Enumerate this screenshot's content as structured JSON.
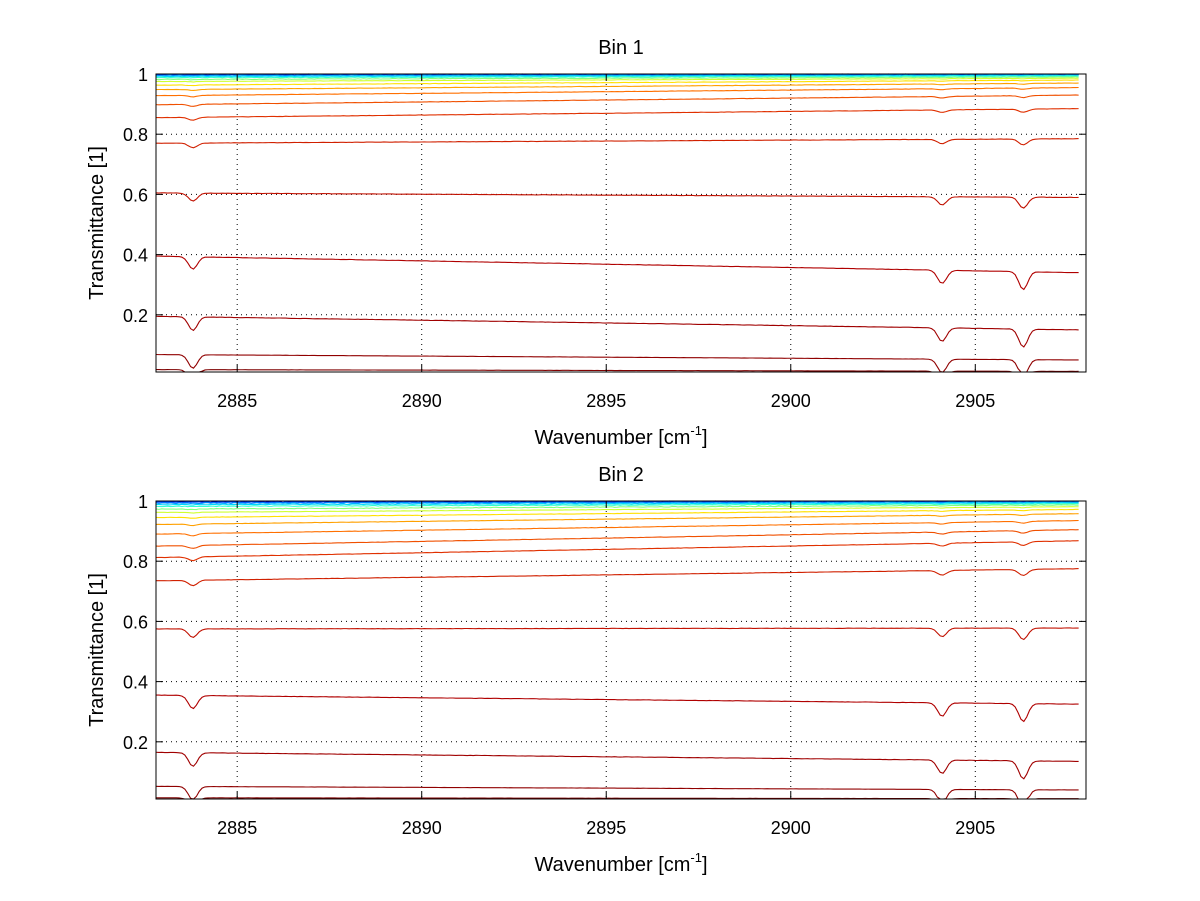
{
  "chart_data": [
    {
      "type": "line",
      "title": "Bin 1",
      "xlabel": "Wavenumber [cm",
      "xlabel_sup": "-1",
      "xlabel_end": "]",
      "ylabel": "Transmittance [1]",
      "xlim": [
        2882.8,
        2908.0
      ],
      "ylim": [
        0.01,
        1.0
      ],
      "xticks": [
        2885,
        2890,
        2895,
        2900,
        2905
      ],
      "yticks": [
        0.2,
        0.4,
        0.6,
        0.8,
        1
      ],
      "xtick_labels": [
        "2885",
        "2890",
        "2895",
        "2900",
        "2905"
      ],
      "ytick_labels": [
        "0.2",
        "0.4",
        "0.6",
        "0.8",
        "1"
      ],
      "grid": true,
      "x_end": 2907.8,
      "absorption_lines": [
        2883.8,
        2904.1,
        2906.3
      ],
      "series": [
        {
          "color": "#00007f",
          "start": 0.999,
          "end": 0.999,
          "noise": 0.004
        },
        {
          "color": "#0000d0",
          "start": 0.998,
          "end": 0.999,
          "noise": 0.004
        },
        {
          "color": "#0040ff",
          "start": 0.997,
          "end": 0.998,
          "noise": 0.003
        },
        {
          "color": "#0090ff",
          "start": 0.995,
          "end": 0.997,
          "noise": 0.003
        },
        {
          "color": "#00d8ff",
          "start": 0.992,
          "end": 0.995,
          "noise": 0.002
        },
        {
          "color": "#30ffcf",
          "start": 0.988,
          "end": 0.993,
          "noise": 0.002
        },
        {
          "color": "#80ff80",
          "start": 0.982,
          "end": 0.99,
          "noise": 0.002
        },
        {
          "color": "#cfff30",
          "start": 0.975,
          "end": 0.986,
          "noise": 0.001
        },
        {
          "color": "#ffe000",
          "start": 0.963,
          "end": 0.98,
          "noise": 0.001
        },
        {
          "color": "#ffa000",
          "start": 0.948,
          "end": 0.97,
          "noise": 0.001
        },
        {
          "color": "#ff7000",
          "start": 0.928,
          "end": 0.955,
          "noise": 0.001
        },
        {
          "color": "#f05000",
          "start": 0.898,
          "end": 0.93,
          "noise": 0.001
        },
        {
          "color": "#e03000",
          "start": 0.855,
          "end": 0.885,
          "noise": 0.001
        },
        {
          "color": "#d02000",
          "start": 0.77,
          "end": 0.785,
          "noise": 0.001
        },
        {
          "color": "#c01000",
          "start": 0.605,
          "end": 0.59,
          "noise": 0.001
        },
        {
          "color": "#b00000",
          "start": 0.395,
          "end": 0.34,
          "noise": 0.001
        },
        {
          "color": "#a00000",
          "start": 0.195,
          "end": 0.15,
          "noise": 0.001
        },
        {
          "color": "#900000",
          "start": 0.068,
          "end": 0.05,
          "noise": 0.0005
        },
        {
          "color": "#7f0000",
          "start": 0.018,
          "end": 0.012,
          "noise": 0.0003
        }
      ]
    },
    {
      "type": "line",
      "title": "Bin 2",
      "xlabel": "Wavenumber [cm",
      "xlabel_sup": "-1",
      "xlabel_end": "]",
      "ylabel": "Transmittance [1]",
      "xlim": [
        2882.8,
        2908.0
      ],
      "ylim": [
        0.01,
        1.0
      ],
      "xticks": [
        2885,
        2890,
        2895,
        2900,
        2905
      ],
      "yticks": [
        0.2,
        0.4,
        0.6,
        0.8,
        1
      ],
      "xtick_labels": [
        "2885",
        "2890",
        "2895",
        "2900",
        "2905"
      ],
      "ytick_labels": [
        "0.2",
        "0.4",
        "0.6",
        "0.8",
        "1"
      ],
      "grid": true,
      "x_end": 2907.8,
      "absorption_lines": [
        2883.8,
        2904.1,
        2906.3
      ],
      "series": [
        {
          "color": "#00007f",
          "start": 1.0,
          "end": 0.999,
          "noise": 0.004
        },
        {
          "color": "#0000d0",
          "start": 0.998,
          "end": 0.999,
          "noise": 0.004
        },
        {
          "color": "#0040ff",
          "start": 0.996,
          "end": 0.998,
          "noise": 0.003
        },
        {
          "color": "#0090ff",
          "start": 0.993,
          "end": 0.996,
          "noise": 0.003
        },
        {
          "color": "#00d8ff",
          "start": 0.988,
          "end": 0.994,
          "noise": 0.002
        },
        {
          "color": "#30ffcf",
          "start": 0.982,
          "end": 0.991,
          "noise": 0.002
        },
        {
          "color": "#80ff80",
          "start": 0.973,
          "end": 0.987,
          "noise": 0.002
        },
        {
          "color": "#cfff30",
          "start": 0.962,
          "end": 0.981,
          "noise": 0.001
        },
        {
          "color": "#ffe000",
          "start": 0.945,
          "end": 0.972,
          "noise": 0.001
        },
        {
          "color": "#ffa000",
          "start": 0.922,
          "end": 0.958,
          "noise": 0.001
        },
        {
          "color": "#ff7000",
          "start": 0.89,
          "end": 0.935,
          "noise": 0.001
        },
        {
          "color": "#f05000",
          "start": 0.85,
          "end": 0.905,
          "noise": 0.001
        },
        {
          "color": "#e03000",
          "start": 0.812,
          "end": 0.868,
          "noise": 0.001
        },
        {
          "color": "#d02000",
          "start": 0.735,
          "end": 0.775,
          "noise": 0.001
        },
        {
          "color": "#c01000",
          "start": 0.575,
          "end": 0.578,
          "noise": 0.001
        },
        {
          "color": "#b00000",
          "start": 0.355,
          "end": 0.325,
          "noise": 0.001
        },
        {
          "color": "#a00000",
          "start": 0.165,
          "end": 0.135,
          "noise": 0.001
        },
        {
          "color": "#900000",
          "start": 0.052,
          "end": 0.04,
          "noise": 0.0005
        },
        {
          "color": "#7f0000",
          "start": 0.014,
          "end": 0.011,
          "noise": 0.0003
        }
      ]
    }
  ]
}
